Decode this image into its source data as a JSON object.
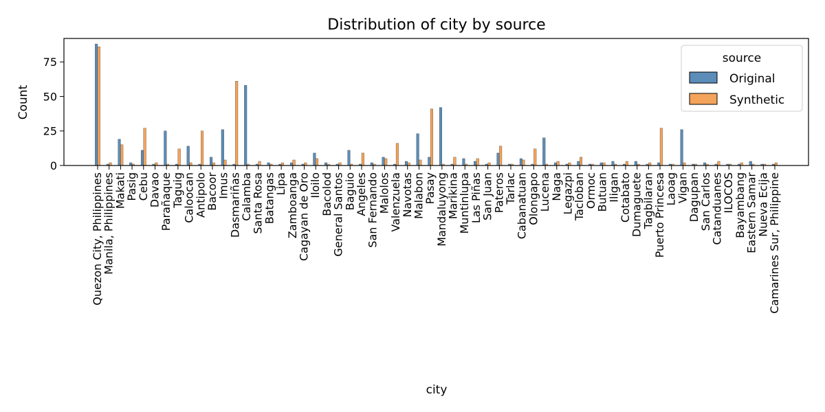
{
  "chart_data": {
    "type": "bar",
    "title": "Distribution of city by source",
    "xlabel": "city",
    "ylabel": "Count",
    "ylim": [
      0,
      92
    ],
    "yticks": [
      0,
      25,
      50,
      75
    ],
    "legend": {
      "title": "source",
      "placement": "top-right"
    },
    "categories": [
      "Quezon City, Philippines",
      "Manila, Philippines",
      "Makati",
      "Pasig",
      "Cebu",
      "Davao",
      "Parañaque",
      "Taguig",
      "Caloocan",
      "Antipolo",
      "Bacoor",
      "Imus",
      "Dasmariñas",
      "Calamba",
      "Santa Rosa",
      "Batangas",
      "Lipa",
      "Zamboanga",
      "Cagayan de Oro",
      "Iloilo",
      "Bacolod",
      "General Santos",
      "Baguio",
      "Angeles",
      "San Fernando",
      "Malolos",
      "Valenzuela",
      "Navotas",
      "Malabon",
      "Pasay",
      "Mandaluyong",
      "Marikina",
      "Muntinlupa",
      "Las Piñas",
      "San Juan",
      "Pateros",
      "Tarlac",
      "Cabanatuan",
      "Olongapo",
      "Lucena",
      "Naga",
      "Legazpi",
      "Tacloban",
      "Ormoc",
      "Butuan",
      "Iligan",
      "Cotabato",
      "Dumaguete",
      "Tagbilaran",
      "Puerto Princesa",
      "Laoag",
      "Vigan",
      "Dagupan",
      "San Carlos",
      "Catanduanes",
      "ILOCOS",
      "Bayambang",
      "Eastern Samar",
      "Nueva Ecija",
      "Camarines Sur, Philippine"
    ],
    "series": [
      {
        "name": "Original",
        "color": "#5b8db8",
        "values": [
          88,
          1,
          19,
          2,
          11,
          1,
          25,
          1,
          14,
          1,
          6,
          26,
          1,
          58,
          1,
          2,
          1,
          2,
          1,
          9,
          2,
          1,
          11,
          1,
          2,
          6,
          1,
          3,
          23,
          6,
          42,
          1,
          5,
          3,
          1,
          9,
          1,
          5,
          1,
          20,
          2,
          1,
          3,
          1,
          2,
          3,
          1,
          3,
          1,
          2,
          1,
          26,
          1,
          2,
          1,
          1,
          1,
          3,
          1,
          1
        ]
      },
      {
        "name": "Synthetic",
        "color": "#f4a35a",
        "values": [
          86,
          2,
          15,
          1,
          27,
          2,
          1,
          12,
          2,
          25,
          2,
          4,
          61,
          1,
          3,
          1,
          2,
          4,
          2,
          5,
          1,
          2,
          1,
          9,
          1,
          5,
          16,
          2,
          4,
          41,
          1,
          6,
          1,
          5,
          2,
          14,
          1,
          4,
          12,
          1,
          3,
          2,
          6,
          1,
          2,
          1,
          3,
          1,
          2,
          27,
          1,
          2,
          1,
          1,
          3,
          1,
          2,
          1,
          1,
          2
        ]
      }
    ]
  }
}
